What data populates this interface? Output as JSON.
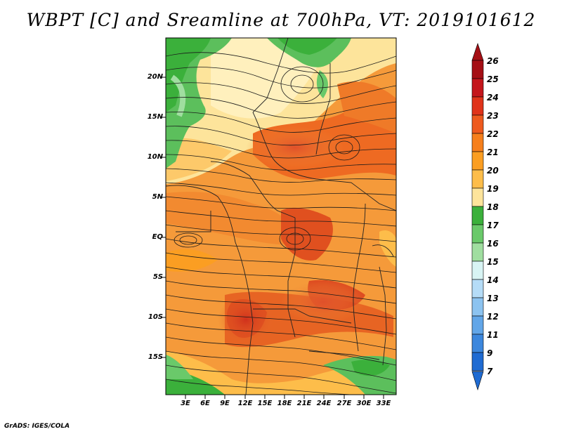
{
  "title": "WBPT [C] and Sreamline at 700hPa, VT: 2019101612",
  "lat_ticks": [
    "20N",
    "15N",
    "10N",
    "5N",
    "EQ",
    "5S",
    "10S",
    "15S"
  ],
  "lon_ticks": [
    "3E",
    "6E",
    "9E",
    "12E",
    "15E",
    "18E",
    "21E",
    "24E",
    "27E",
    "30E",
    "33E"
  ],
  "colorbar": {
    "labels": [
      "26",
      "25",
      "24",
      "23",
      "22",
      "21",
      "20",
      "19",
      "18",
      "17",
      "16",
      "15",
      "14",
      "13",
      "12",
      "11",
      "9",
      "7"
    ],
    "colors": [
      "#a50f15",
      "#c4161c",
      "#e0331a",
      "#ee5a1e",
      "#f67f1c",
      "#fb9e22",
      "#fdbd4a",
      "#fde49b",
      "#3bb03b",
      "#6ac96a",
      "#a0dea0",
      "#d8f4f4",
      "#b5dcf7",
      "#8cc3f0",
      "#62a6e8",
      "#3c87dd",
      "#1f6bd2"
    ],
    "tip_top_color": "#a50f15",
    "tip_bottom_color": "#1f6bd2"
  },
  "credit": "GrADS: IGES/COLA"
}
